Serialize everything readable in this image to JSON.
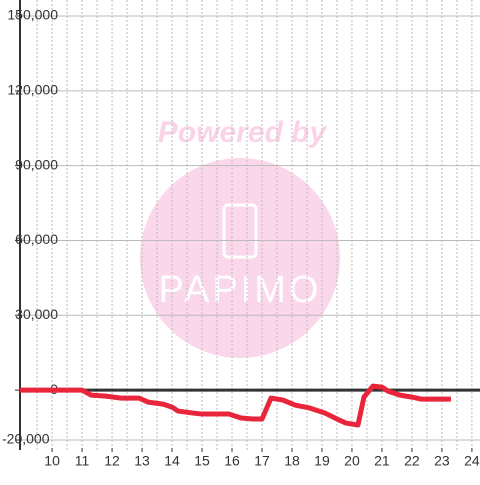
{
  "chart_data": {
    "type": "line",
    "annotations": [
      "Powered by",
      "PAPIMO"
    ],
    "series": [
      {
        "color": "#e8253b",
        "x": [
          8.93,
          11.0,
          11.3,
          11.8,
          12.3,
          12.9,
          13.2,
          13.7,
          14.0,
          14.2,
          14.7,
          15.0,
          15.9,
          16.3,
          16.7,
          17.0,
          17.3,
          17.7,
          18.1,
          18.6,
          19.1,
          19.5,
          19.8,
          20.2,
          20.4,
          20.7,
          21.0,
          21.2,
          21.6,
          22.0,
          22.3,
          23.3
        ],
        "values": [
          0,
          0,
          -2000,
          -2400,
          -3200,
          -3200,
          -4800,
          -5600,
          -6800,
          -8400,
          -9200,
          -9600,
          -9600,
          -11200,
          -11600,
          -11600,
          -3200,
          -4000,
          -6000,
          -7200,
          -9200,
          -11600,
          -13200,
          -14000,
          -2800,
          1600,
          1200,
          -400,
          -2000,
          -2800,
          -3600,
          -3600
        ]
      }
    ],
    "xlim": [
      8.93,
      24.27
    ],
    "xticks": [
      10,
      11,
      12,
      13,
      14,
      15,
      16,
      17,
      18,
      19,
      20,
      21,
      22,
      23,
      24
    ],
    "ylim": [
      -20000,
      150000
    ],
    "yticks": [
      {
        "value": -20000,
        "label": "-20,000"
      },
      0,
      {
        "value": 30000,
        "label": "30,000"
      },
      {
        "value": 60000,
        "label": "60,000"
      },
      {
        "value": 90000,
        "label": "90,000"
      },
      {
        "value": 120000,
        "label": "120,000"
      },
      {
        "value": 150000,
        "label": "150,000"
      }
    ],
    "grid": true
  }
}
